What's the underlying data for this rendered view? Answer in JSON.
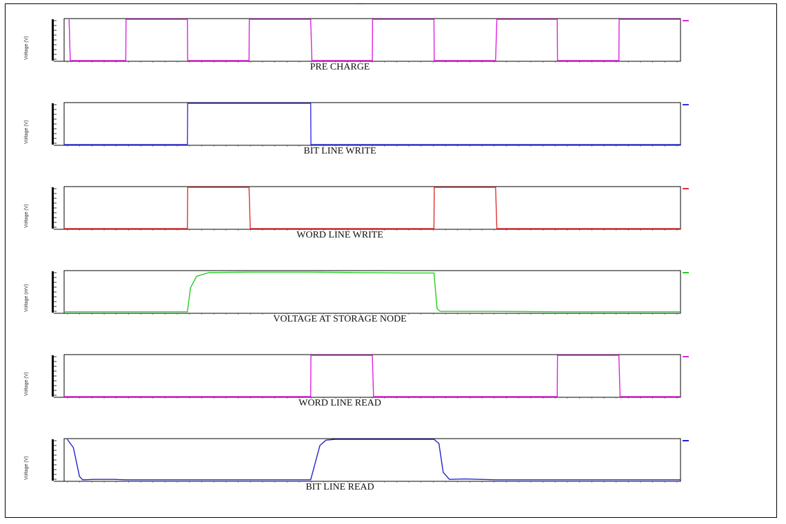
{
  "header_mark": "…",
  "chart_data": [
    {
      "type": "line",
      "title": "PRE CHARGE",
      "ylabel": "Voltage (V)",
      "color": "#e020e0",
      "series": [
        {
          "x": [
            0,
            0.001,
            1,
            1.001,
            2,
            2.001,
            3,
            3.001,
            4,
            4.001,
            5,
            5.001,
            6,
            6.001,
            7,
            7.001,
            8,
            8.001,
            9,
            10
          ],
          "y": [
            1,
            0,
            0,
            1,
            1,
            0,
            0,
            1,
            1,
            0,
            0,
            1,
            1,
            0,
            0,
            1,
            1,
            0,
            0.0,
            1
          ]
        }
      ],
      "shape": [
        [
          0.08,
          1
        ],
        [
          0.1,
          0
        ],
        [
          1,
          0
        ],
        [
          1.005,
          1
        ],
        [
          2,
          1
        ],
        [
          2.005,
          0
        ],
        [
          3,
          0
        ],
        [
          3.005,
          1
        ],
        [
          4,
          1
        ],
        [
          4.02,
          0
        ],
        [
          5,
          0
        ],
        [
          5.005,
          1
        ],
        [
          6,
          1
        ],
        [
          6.005,
          0
        ],
        [
          7,
          0
        ],
        [
          7.02,
          1
        ],
        [
          8,
          1
        ],
        [
          8.005,
          0
        ],
        [
          9,
          0
        ],
        [
          9.005,
          1
        ],
        [
          10,
          1
        ]
      ],
      "xlim": [
        0,
        10
      ],
      "ylim": [
        0,
        1
      ]
    },
    {
      "type": "line",
      "title": "BIT LINE WRITE",
      "ylabel": "Voltage (V)",
      "color": "#3030e0",
      "shape": [
        [
          0,
          0
        ],
        [
          2,
          0
        ],
        [
          2.005,
          1
        ],
        [
          4,
          1
        ],
        [
          4.005,
          0
        ],
        [
          10,
          0
        ]
      ],
      "xlim": [
        0,
        10
      ],
      "ylim": [
        0,
        1
      ]
    },
    {
      "type": "line",
      "title": "WORD LINE WRITE",
      "ylabel": "Voltage (V)",
      "color": "#e03030",
      "shape": [
        [
          0,
          0
        ],
        [
          2,
          0
        ],
        [
          2.005,
          1
        ],
        [
          3,
          1
        ],
        [
          3.02,
          0
        ],
        [
          6,
          0
        ],
        [
          6.005,
          1
        ],
        [
          7,
          1
        ],
        [
          7.02,
          0
        ],
        [
          10,
          0
        ]
      ],
      "xlim": [
        0,
        10
      ],
      "ylim": [
        0,
        1
      ]
    },
    {
      "type": "line",
      "title": "VOLTAGE AT STORAGE NODE",
      "ylabel": "Voltage (mV)",
      "color": "#20d020",
      "shape": [
        [
          0,
          0.02
        ],
        [
          2,
          0.02
        ],
        [
          2.05,
          0.6
        ],
        [
          2.15,
          0.88
        ],
        [
          2.35,
          0.97
        ],
        [
          3,
          0.98
        ],
        [
          4,
          0.98
        ],
        [
          4.7,
          0.97
        ],
        [
          5.5,
          0.96
        ],
        [
          6,
          0.96
        ],
        [
          6.05,
          0.1
        ],
        [
          6.1,
          0.03
        ],
        [
          7,
          0.03
        ],
        [
          8,
          0.02
        ],
        [
          10,
          0.02
        ]
      ],
      "xlim": [
        0,
        10
      ],
      "ylim": [
        0,
        1
      ]
    },
    {
      "type": "line",
      "title": "WORD LINE READ",
      "ylabel": "Voltage (V)",
      "color": "#e020e0",
      "shape": [
        [
          0,
          0
        ],
        [
          4,
          0
        ],
        [
          4.005,
          1
        ],
        [
          5,
          1
        ],
        [
          5.02,
          0
        ],
        [
          8,
          0
        ],
        [
          8.005,
          1
        ],
        [
          9,
          1
        ],
        [
          9.02,
          0
        ],
        [
          10,
          0
        ]
      ],
      "xlim": [
        0,
        10
      ],
      "ylim": [
        0,
        1
      ]
    },
    {
      "type": "line",
      "title": "BIT LINE READ",
      "ylabel": "Voltage (V)",
      "color": "#2020d0",
      "shape": [
        [
          0.05,
          1
        ],
        [
          0.15,
          0.8
        ],
        [
          0.25,
          0.1
        ],
        [
          0.3,
          0.02
        ],
        [
          0.5,
          0.03
        ],
        [
          0.8,
          0.03
        ],
        [
          1,
          0.02
        ],
        [
          2,
          0.02
        ],
        [
          4,
          0.02
        ],
        [
          4.05,
          0.3
        ],
        [
          4.15,
          0.85
        ],
        [
          4.25,
          0.98
        ],
        [
          4.4,
          1
        ],
        [
          6,
          1
        ],
        [
          6.08,
          0.9
        ],
        [
          6.15,
          0.2
        ],
        [
          6.25,
          0.03
        ],
        [
          6.5,
          0.04
        ],
        [
          7,
          0.02
        ],
        [
          10,
          0.02
        ]
      ],
      "xlim": [
        0,
        10
      ],
      "ylim": [
        0,
        1
      ]
    }
  ]
}
